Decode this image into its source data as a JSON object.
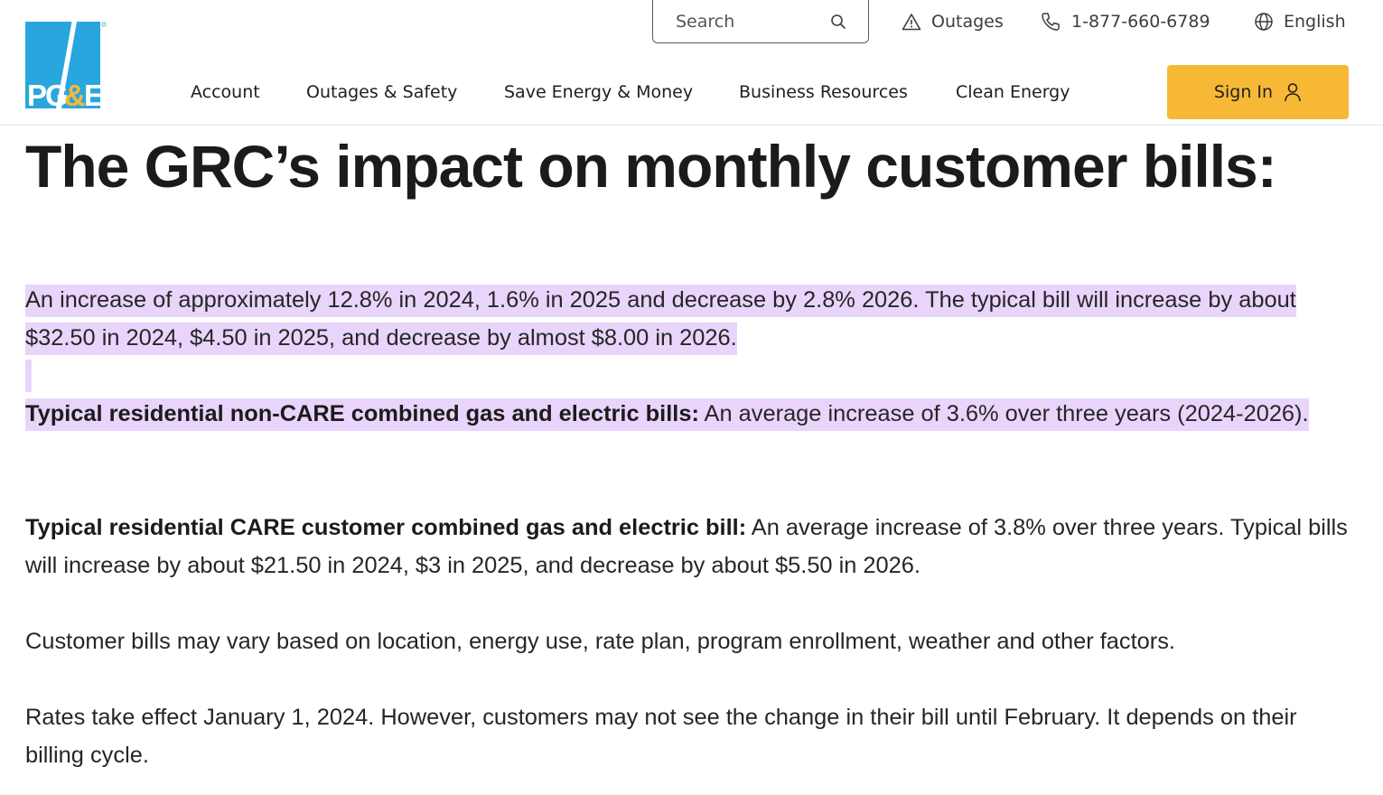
{
  "brand": {
    "logo_text": "PG&E",
    "colors": {
      "logo_blue": "#2aa6de",
      "signin_yellow": "#f7b935",
      "highlight": "#e9d4fb"
    }
  },
  "utility_bar": {
    "search_label": "Search",
    "outages_label": "Outages",
    "phone": "1-877-660-6789",
    "language": "English",
    "icons": [
      "search-icon",
      "warning-icon",
      "phone-icon",
      "globe-icon"
    ]
  },
  "nav": {
    "items": [
      {
        "label": "Account"
      },
      {
        "label": "Outages & Safety"
      },
      {
        "label": "Save Energy & Money"
      },
      {
        "label": "Business Resources"
      },
      {
        "label": "Clean Energy"
      }
    ],
    "signin_label": "Sign In"
  },
  "content": {
    "title": "The GRC’s impact on monthly customer bills:",
    "p1": "An increase of approximately 12.8% in 2024, 1.6% in 2025 and decrease by 2.8% 2026. The typical bill will increase by about $32.50 in 2024, $4.50 in 2025, and decrease by almost $8.00 in 2026.",
    "p2_bold": "Typical residential non-CARE combined gas and electric bills:",
    "p2_text": " An average increase of 3.6% over three years (2024-2026).",
    "p3_bold": "Typical residential CARE customer combined gas and electric bill:",
    "p3_text": " An average increase of 3.8% over three years. Typical bills will increase by about $21.50 in 2024, $3 in 2025, and decrease by about $5.50 in 2026.",
    "p4": "Customer bills may vary based on location, energy use, rate plan, program enrollment, weather and other factors.",
    "p5": "Rates take effect January 1, 2024. However, customers may not see the change in their bill until February. It depends on their billing cycle."
  }
}
